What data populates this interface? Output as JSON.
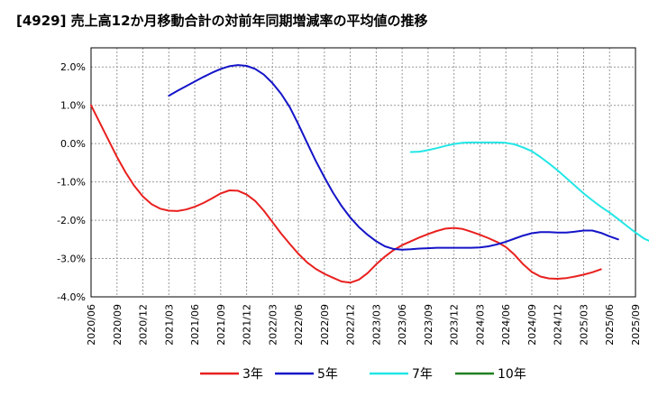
{
  "chart_data": {
    "type": "line",
    "title": "[4929]  売上高12か月移動合計の対前年同期増減率の平均値の推移",
    "xlabel": "",
    "ylabel": "",
    "ylim": [
      -4.0,
      2.5
    ],
    "yticks": [
      2.0,
      1.0,
      0.0,
      -1.0,
      -2.0,
      -3.0,
      -4.0
    ],
    "ytick_labels": [
      "2.0%",
      "1.0%",
      "0.0%",
      "-1.0%",
      "-2.0%",
      "-3.0%",
      "-4.0%"
    ],
    "x_ticks": [
      "2020/06",
      "2020/09",
      "2020/12",
      "2021/03",
      "2021/06",
      "2021/09",
      "2021/12",
      "2022/03",
      "2022/06",
      "2022/09",
      "2022/12",
      "2023/03",
      "2023/06",
      "2023/09",
      "2023/12",
      "2024/03",
      "2024/06",
      "2024/09",
      "2024/12",
      "2025/03",
      "2025/06",
      "2025/09"
    ],
    "grid": true,
    "legend_position": "bottom",
    "series": [
      {
        "name": "3年",
        "color": "#e8201e",
        "start_index": 0,
        "values": [
          1.0,
          0.55,
          0.1,
          -0.35,
          -0.75,
          -1.1,
          -1.38,
          -1.58,
          -1.7,
          -1.75,
          -1.76,
          -1.72,
          -1.65,
          -1.55,
          -1.43,
          -1.3,
          -1.22,
          -1.23,
          -1.33,
          -1.5,
          -1.75,
          -2.05,
          -2.35,
          -2.62,
          -2.88,
          -3.1,
          -3.27,
          -3.4,
          -3.5,
          -3.6,
          -3.63,
          -3.55,
          -3.38,
          -3.15,
          -2.95,
          -2.78,
          -2.65,
          -2.55,
          -2.45,
          -2.36,
          -2.28,
          -2.22,
          -2.2,
          -2.23,
          -2.3,
          -2.38,
          -2.47,
          -2.57,
          -2.7,
          -2.9,
          -3.15,
          -3.35,
          -3.47,
          -3.52,
          -3.53,
          -3.51,
          -3.47,
          -3.42,
          -3.36,
          -3.28
        ]
      },
      {
        "name": "5年",
        "color": "#1414c8",
        "start_index": 9,
        "values": [
          1.25,
          1.38,
          1.5,
          1.62,
          1.74,
          1.85,
          1.95,
          2.02,
          2.05,
          2.03,
          1.95,
          1.8,
          1.58,
          1.3,
          0.95,
          0.5,
          0.02,
          -0.45,
          -0.88,
          -1.28,
          -1.63,
          -1.93,
          -2.18,
          -2.38,
          -2.55,
          -2.68,
          -2.75,
          -2.77,
          -2.76,
          -2.74,
          -2.73,
          -2.72,
          -2.72,
          -2.72,
          -2.72,
          -2.72,
          -2.71,
          -2.68,
          -2.63,
          -2.56,
          -2.48,
          -2.4,
          -2.34,
          -2.31,
          -2.31,
          -2.32,
          -2.32,
          -2.3,
          -2.27,
          -2.27,
          -2.33,
          -2.42,
          -2.5
        ]
      },
      {
        "name": "7年",
        "color": "#22e6e6",
        "start_index": 37,
        "values": [
          -0.22,
          -0.21,
          -0.17,
          -0.12,
          -0.06,
          -0.01,
          0.02,
          0.03,
          0.03,
          0.03,
          0.03,
          0.02,
          -0.02,
          -0.1,
          -0.2,
          -0.35,
          -0.52,
          -0.7,
          -0.9,
          -1.1,
          -1.3,
          -1.48,
          -1.65,
          -1.8,
          -1.97,
          -2.15,
          -2.32,
          -2.48,
          -2.58
        ]
      },
      {
        "name": "10年",
        "color": "#208020",
        "start_index": 0,
        "values": []
      }
    ]
  }
}
